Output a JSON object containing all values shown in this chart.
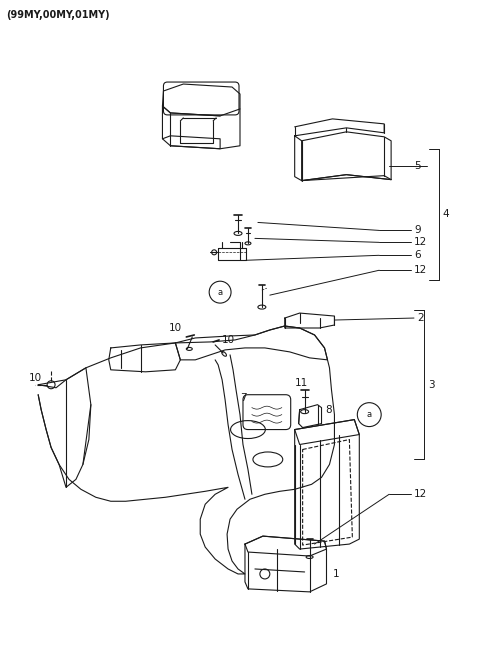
{
  "title": "(99MY,00MY,01MY)",
  "bg": "#ffffff",
  "lc": "#1a1a1a",
  "gray": "#888888",
  "fig_w": 4.8,
  "fig_h": 6.55,
  "dpi": 100
}
